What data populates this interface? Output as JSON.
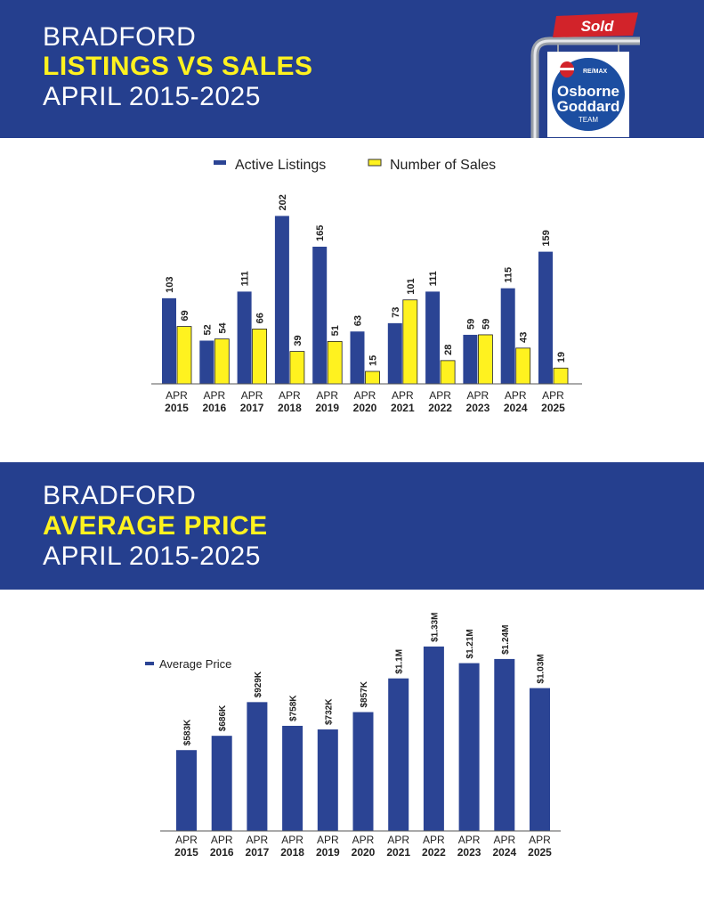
{
  "header1": {
    "line1": "BRADFORD",
    "line2": "LISTINGS VS SALES",
    "line3": "APRIL 2015-2025"
  },
  "header2": {
    "line1": "BRADFORD",
    "line2": "AVERAGE PRICE",
    "line3": "APRIL 2015-2025"
  },
  "logo": {
    "sign_text": "Sold",
    "brand": "RE/MAX",
    "name_line1": "Osborne",
    "name_line2": "Goddard",
    "name_line3": "TEAM"
  },
  "colors": {
    "banner": "#253f8e",
    "bar_blue": "#2b4494",
    "bar_yellow": "#fff21f",
    "title_yellow": "#fff21f",
    "sign_red": "#d2232a"
  },
  "chart_data": [
    {
      "type": "bar",
      "categories": [
        "APR 2015",
        "APR 2016",
        "APR 2017",
        "APR 2018",
        "APR 2019",
        "APR 2020",
        "APR 2021",
        "APR 2022",
        "APR 2023",
        "APR 2024",
        "APR 2025"
      ],
      "category_labels": [
        {
          "top": "APR",
          "bottom": "2015"
        },
        {
          "top": "APR",
          "bottom": "2016"
        },
        {
          "top": "APR",
          "bottom": "2017"
        },
        {
          "top": "APR",
          "bottom": "2018"
        },
        {
          "top": "APR",
          "bottom": "2019"
        },
        {
          "top": "APR",
          "bottom": "2020"
        },
        {
          "top": "APR",
          "bottom": "2021"
        },
        {
          "top": "APR",
          "bottom": "2022"
        },
        {
          "top": "APR",
          "bottom": "2023"
        },
        {
          "top": "APR",
          "bottom": "2024"
        },
        {
          "top": "APR",
          "bottom": "2025"
        }
      ],
      "series": [
        {
          "name": "Active Listings",
          "color": "#2b4494",
          "values": [
            103,
            52,
            111,
            202,
            165,
            63,
            73,
            111,
            59,
            115,
            159
          ],
          "labels": [
            "103",
            "52",
            "111",
            "202",
            "165",
            "63",
            "73",
            "111",
            "59",
            "115",
            "159"
          ]
        },
        {
          "name": "Number of Sales",
          "color": "#fff21f",
          "values": [
            69,
            54,
            66,
            39,
            51,
            15,
            101,
            28,
            59,
            43,
            19
          ],
          "labels": [
            "69",
            "54",
            "66",
            "39",
            "51",
            "15",
            "101",
            "28",
            "59",
            "43",
            "19"
          ]
        }
      ],
      "ylim": [
        0,
        210
      ],
      "legend": "top-center",
      "grid": false
    },
    {
      "type": "bar",
      "categories": [
        "APR 2015",
        "APR 2016",
        "APR 2017",
        "APR 2018",
        "APR 2019",
        "APR 2020",
        "APR 2021",
        "APR 2022",
        "APR 2023",
        "APR 2024",
        "APR 2025"
      ],
      "category_labels": [
        {
          "top": "APR",
          "bottom": "2015"
        },
        {
          "top": "APR",
          "bottom": "2016"
        },
        {
          "top": "APR",
          "bottom": "2017"
        },
        {
          "top": "APR",
          "bottom": "2018"
        },
        {
          "top": "APR",
          "bottom": "2019"
        },
        {
          "top": "APR",
          "bottom": "2020"
        },
        {
          "top": "APR",
          "bottom": "2021"
        },
        {
          "top": "APR",
          "bottom": "2022"
        },
        {
          "top": "APR",
          "bottom": "2023"
        },
        {
          "top": "APR",
          "bottom": "2024"
        },
        {
          "top": "APR",
          "bottom": "2025"
        }
      ],
      "series": [
        {
          "name": "Average Price",
          "color": "#2b4494",
          "values": [
            583000,
            686000,
            929000,
            758000,
            732000,
            857000,
            1100000,
            1330000,
            1210000,
            1240000,
            1030000
          ],
          "labels": [
            "$583K",
            "$686K",
            "$929K",
            "$758K",
            "$732K",
            "$857K",
            "$1.1M",
            "$1.33M",
            "$1.21M",
            "$1.24M",
            "$1.03M"
          ]
        }
      ],
      "ylim": [
        0,
        1400000
      ],
      "legend": "top-left",
      "grid": false
    }
  ]
}
